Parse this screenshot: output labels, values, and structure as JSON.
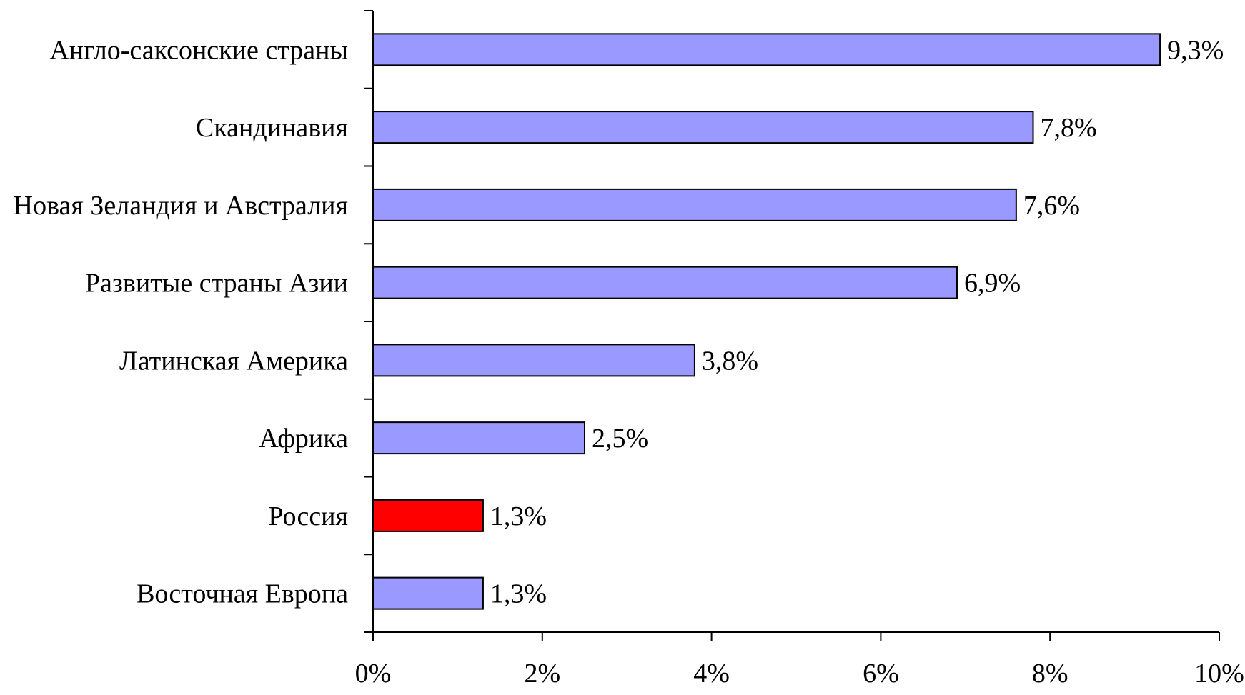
{
  "chart_data": {
    "type": "bar",
    "orientation": "horizontal",
    "title": "",
    "xlabel": "",
    "ylabel": "",
    "categories": [
      "Англо-саксонские страны",
      "Скандинавия",
      "Новая Зеландия и Австралия",
      "Развитые страны Азии",
      "Латинская Америка",
      "Африка",
      "Россия",
      "Восточная Европа"
    ],
    "values": [
      9.3,
      7.8,
      7.6,
      6.9,
      3.8,
      2.5,
      1.3,
      1.3
    ],
    "value_labels": [
      "9,3%",
      "7,8%",
      "7,6%",
      "6,9%",
      "3,8%",
      "2,5%",
      "1,3%",
      "1,3%"
    ],
    "xlim": [
      0,
      10
    ],
    "x_ticks": [
      0,
      2,
      4,
      6,
      8,
      10
    ],
    "x_tick_labels": [
      "0%",
      "2%",
      "4%",
      "6%",
      "8%",
      "10%"
    ],
    "grid": false,
    "legend": "none",
    "colors": {
      "bar": "#9999ff",
      "highlight_bar": "#ff0000",
      "bar_outline": "#000000"
    },
    "highlight_category": "Россия"
  }
}
